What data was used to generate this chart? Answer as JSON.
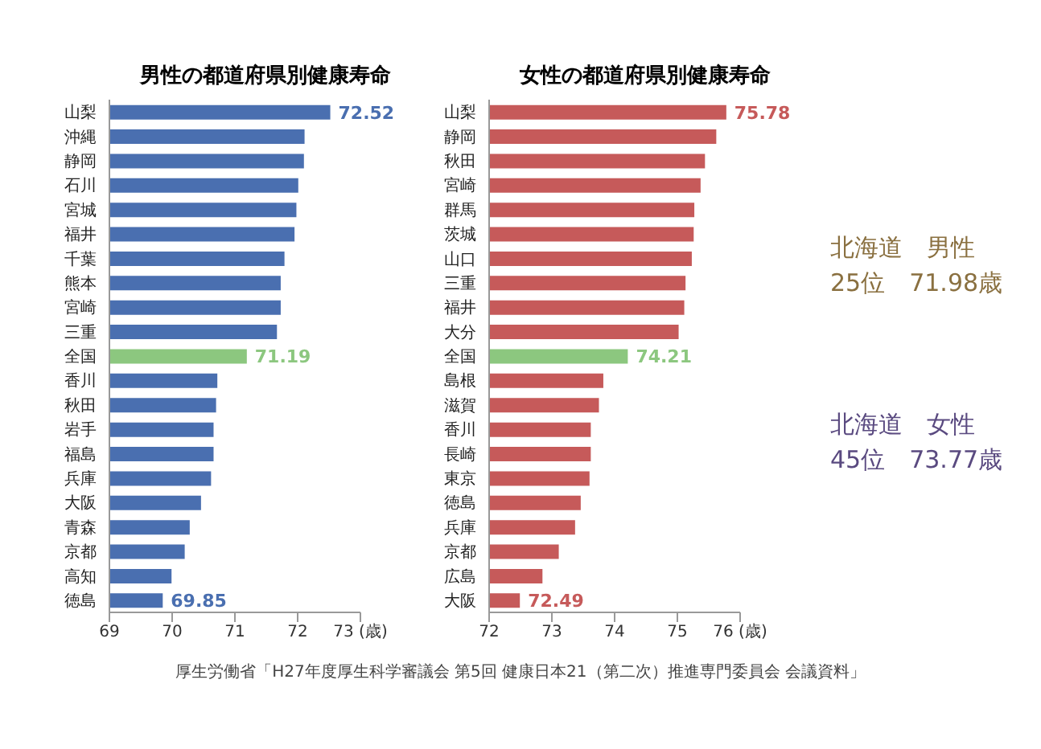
{
  "chart_data": [
    {
      "type": "bar",
      "orientation": "horizontal",
      "title": "男性の都道府県別健康寿命",
      "categories": [
        "山梨",
        "沖縄",
        "静岡",
        "石川",
        "宮城",
        "福井",
        "千葉",
        "熊本",
        "宮崎",
        "三重",
        "全国",
        "香川",
        "秋田",
        "岩手",
        "福島",
        "兵庫",
        "大阪",
        "青森",
        "京都",
        "高知",
        "徳島"
      ],
      "values": [
        72.52,
        72.11,
        72.1,
        72.01,
        71.98,
        71.95,
        71.79,
        71.73,
        71.73,
        71.67,
        71.19,
        70.72,
        70.7,
        70.66,
        70.66,
        70.62,
        70.46,
        70.28,
        70.2,
        69.99,
        69.85
      ],
      "colors": [
        "#4a6fb0",
        "#4a6fb0",
        "#4a6fb0",
        "#4a6fb0",
        "#4a6fb0",
        "#4a6fb0",
        "#4a6fb0",
        "#4a6fb0",
        "#4a6fb0",
        "#4a6fb0",
        "#8cc77f",
        "#4a6fb0",
        "#4a6fb0",
        "#4a6fb0",
        "#4a6fb0",
        "#4a6fb0",
        "#4a6fb0",
        "#4a6fb0",
        "#4a6fb0",
        "#4a6fb0",
        "#4a6fb0"
      ],
      "value_labels": [
        "72.52",
        null,
        null,
        null,
        null,
        null,
        null,
        null,
        null,
        null,
        "71.19",
        null,
        null,
        null,
        null,
        null,
        null,
        null,
        null,
        null,
        "69.85"
      ],
      "xlim": [
        69,
        73
      ],
      "xticks": [
        69,
        70,
        71,
        72,
        {
          "value": 73,
          "label": "73 (歳)"
        }
      ],
      "grid": false,
      "legend": false
    },
    {
      "type": "bar",
      "orientation": "horizontal",
      "title": "女性の都道府県別健康寿命",
      "categories": [
        "山梨",
        "静岡",
        "秋田",
        "宮崎",
        "群馬",
        "茨城",
        "山口",
        "三重",
        "福井",
        "大分",
        "全国",
        "島根",
        "滋賀",
        "香川",
        "長崎",
        "東京",
        "徳島",
        "兵庫",
        "京都",
        "広島",
        "大阪"
      ],
      "values": [
        75.78,
        75.62,
        75.44,
        75.37,
        75.27,
        75.26,
        75.23,
        75.13,
        75.11,
        75.02,
        74.21,
        73.82,
        73.75,
        73.62,
        73.62,
        73.6,
        73.46,
        73.37,
        73.11,
        72.85,
        72.49
      ],
      "colors": [
        "#c65a5a",
        "#c65a5a",
        "#c65a5a",
        "#c65a5a",
        "#c65a5a",
        "#c65a5a",
        "#c65a5a",
        "#c65a5a",
        "#c65a5a",
        "#c65a5a",
        "#8cc77f",
        "#c65a5a",
        "#c65a5a",
        "#c65a5a",
        "#c65a5a",
        "#c65a5a",
        "#c65a5a",
        "#c65a5a",
        "#c65a5a",
        "#c65a5a",
        "#c65a5a"
      ],
      "value_labels": [
        "75.78",
        null,
        null,
        null,
        null,
        null,
        null,
        null,
        null,
        null,
        "74.21",
        null,
        null,
        null,
        null,
        null,
        null,
        null,
        null,
        null,
        "72.49"
      ],
      "xlim": [
        72,
        76
      ],
      "xticks": [
        72,
        73,
        74,
        75,
        {
          "value": 76,
          "label": "76 (歳)"
        }
      ],
      "grid": false,
      "legend": false,
      "annotations": [
        "北海道　男性\n25位　71.98歳",
        "北海道　女性\n45位　73.77歳",
        "厚生労働省「H27年度厚生科学審議会 第5回 健康日本21（第二次）推進専門委員会 会議資料」"
      ]
    }
  ]
}
